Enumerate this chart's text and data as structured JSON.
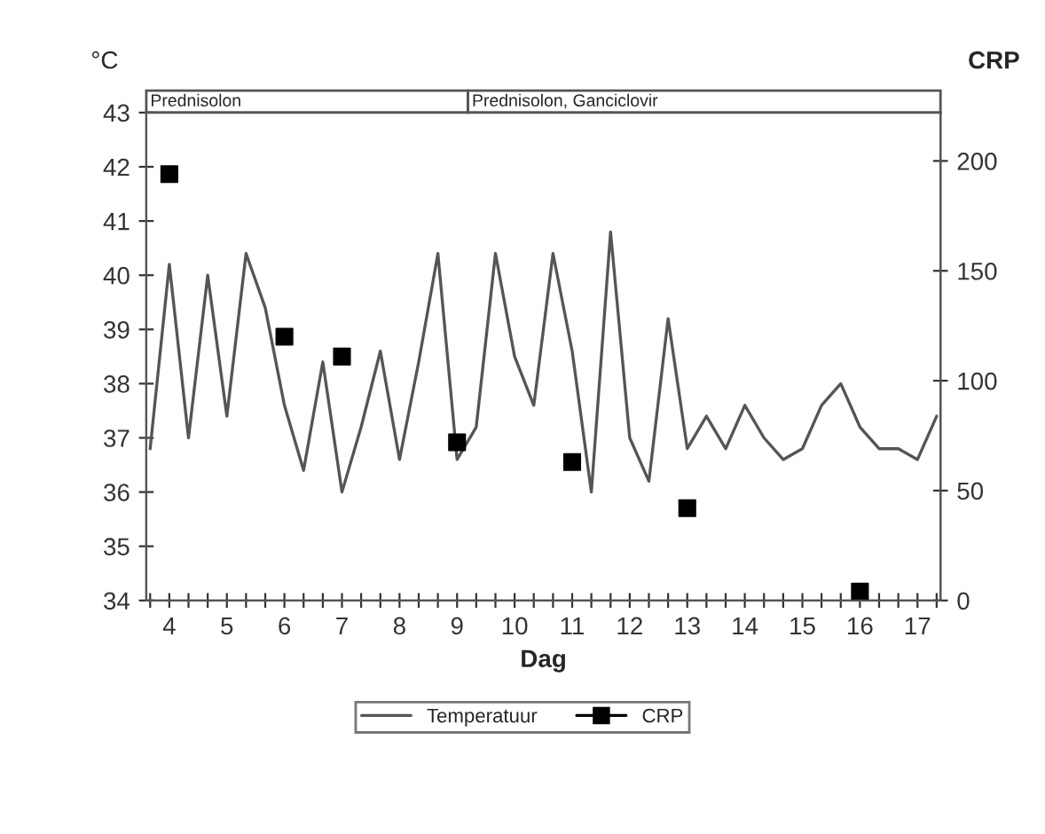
{
  "chart_data": {
    "type": "line",
    "xlabel": "Dag",
    "ylabel": "°C",
    "y2label": "CRP",
    "annotations": [
      "Prednisolon",
      "Prednisolon, Ganciclovir"
    ],
    "series": [
      {
        "name": "Temperatuur",
        "color": "#555555",
        "marker": "none",
        "x": [
          3.667,
          4,
          4.333,
          4.667,
          5,
          5.333,
          5.667,
          6,
          6.333,
          6.667,
          7,
          7.333,
          7.667,
          8,
          8.333,
          8.667,
          9,
          9.333,
          9.667,
          10,
          10.333,
          10.667,
          11,
          11.333,
          11.667,
          12,
          12.333,
          12.667,
          13,
          13.333,
          13.667,
          14,
          14.333,
          14.667,
          15,
          15.333,
          15.667,
          16,
          16.333,
          16.667,
          17,
          17.333
        ],
        "values": [
          36.8,
          40.2,
          37.0,
          40.0,
          37.4,
          40.4,
          39.4,
          37.6,
          36.4,
          38.4,
          36.0,
          37.2,
          38.6,
          36.6,
          38.4,
          40.4,
          36.6,
          37.2,
          40.4,
          38.5,
          37.6,
          40.4,
          38.6,
          36.0,
          40.8,
          37.0,
          36.2,
          39.2,
          36.8,
          37.4,
          36.8,
          37.6,
          37.0,
          36.6,
          36.8,
          37.6,
          38.0,
          37.2,
          36.8,
          36.8,
          36.6,
          37.4
        ]
      },
      {
        "name": "CRP",
        "type": "scatter",
        "axis": "y2",
        "color": "#000000",
        "marker": "square",
        "x": [
          4,
          6,
          7,
          9,
          11,
          13,
          16
        ],
        "values": [
          194,
          120,
          111,
          72,
          63,
          42,
          4
        ]
      }
    ],
    "xlim": [
      3.6,
      17.4
    ],
    "xticks": [
      {
        "value": 3.667,
        "label": null
      },
      4,
      {
        "value": 4.333,
        "label": null
      },
      {
        "value": 4.667,
        "label": null
      },
      5,
      {
        "value": 5.333,
        "label": null
      },
      {
        "value": 5.667,
        "label": null
      },
      6,
      {
        "value": 6.333,
        "label": null
      },
      {
        "value": 6.667,
        "label": null
      },
      7,
      {
        "value": 7.333,
        "label": null
      },
      {
        "value": 7.667,
        "label": null
      },
      8,
      {
        "value": 8.333,
        "label": null
      },
      {
        "value": 8.667,
        "label": null
      },
      9,
      {
        "value": 9.333,
        "label": null
      },
      {
        "value": 9.667,
        "label": null
      },
      10,
      {
        "value": 10.333,
        "label": null
      },
      {
        "value": 10.667,
        "label": null
      },
      11,
      {
        "value": 11.333,
        "label": null
      },
      {
        "value": 11.667,
        "label": null
      },
      12,
      {
        "value": 12.333,
        "label": null
      },
      {
        "value": 12.667,
        "label": null
      },
      13,
      {
        "value": 13.333,
        "label": null
      },
      {
        "value": 13.667,
        "label": null
      },
      14,
      {
        "value": 14.333,
        "label": null
      },
      {
        "value": 14.667,
        "label": null
      },
      15,
      {
        "value": 15.333,
        "label": null
      },
      {
        "value": 15.667,
        "label": null
      },
      16,
      {
        "value": 16.333,
        "label": null
      },
      {
        "value": 16.667,
        "label": null
      },
      17,
      {
        "value": 17.333,
        "label": null
      }
    ],
    "ylim": [
      34,
      43
    ],
    "yticks": [
      34,
      35,
      36,
      37,
      38,
      39,
      40,
      41,
      42,
      43
    ],
    "y2lim": [
      0,
      222
    ],
    "y2ticks": [
      0,
      50,
      100,
      150,
      200
    ],
    "grid": false,
    "legend": "bottom"
  }
}
